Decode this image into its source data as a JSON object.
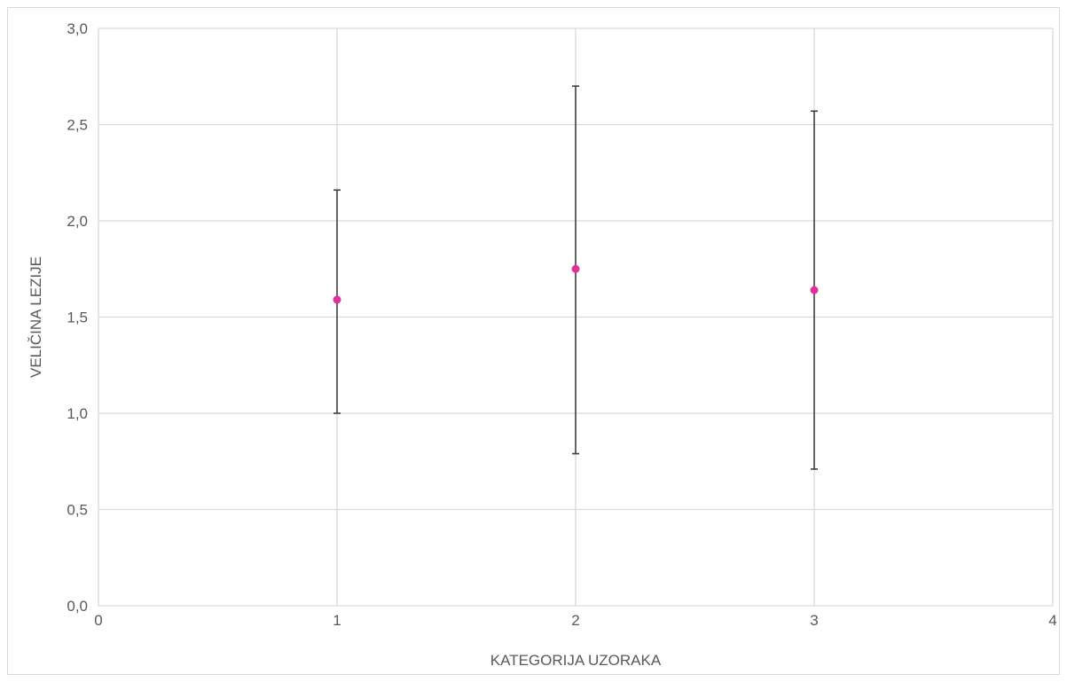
{
  "chart_data": {
    "type": "scatter",
    "title": "",
    "xlabel": "KATEGORIJA UZORAKA",
    "ylabel": "VELIČINA LEZIJE",
    "xlim": [
      0,
      4
    ],
    "ylim": [
      0,
      3
    ],
    "x_ticks": [
      0,
      1,
      2,
      3,
      4
    ],
    "y_ticks": [
      0,
      0.5,
      1,
      1.5,
      2,
      2.5,
      3
    ],
    "x_tick_labels": [
      "0",
      "1",
      "2",
      "3",
      "4"
    ],
    "y_tick_labels": [
      "0,0",
      "0,5",
      "1,0",
      "1,5",
      "2,0",
      "2,5",
      "3,0"
    ],
    "grid": true,
    "legend": "none",
    "colors": {
      "marker": "#e0309a",
      "error_bar": "#404040",
      "grid": "#d9d9d9"
    },
    "series": [
      {
        "points": [
          {
            "x": 1,
            "y": 1.59,
            "err_low": 1.0,
            "err_high": 2.16
          },
          {
            "x": 2,
            "y": 1.75,
            "err_low": 0.79,
            "err_high": 2.7
          },
          {
            "x": 3,
            "y": 1.64,
            "err_low": 0.71,
            "err_high": 2.57
          }
        ]
      }
    ]
  }
}
